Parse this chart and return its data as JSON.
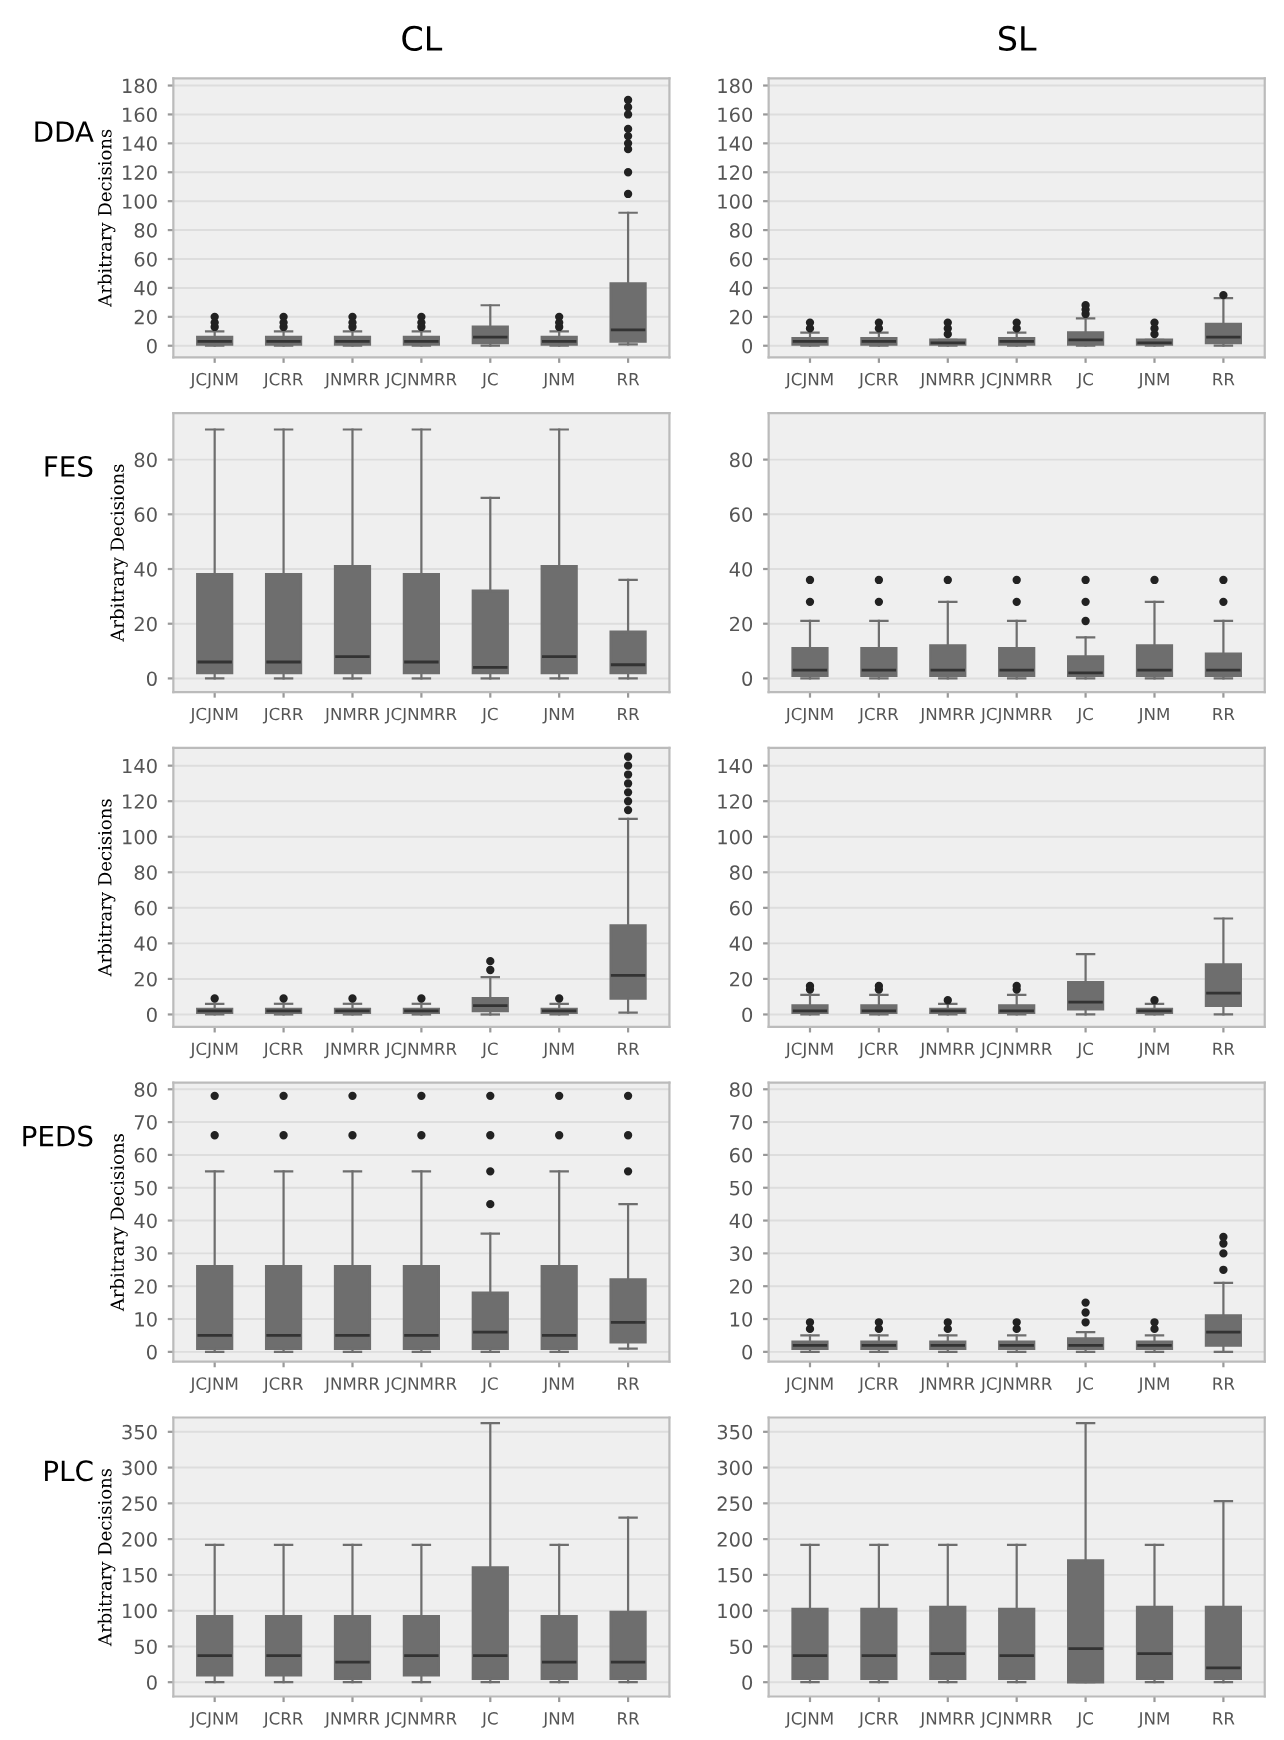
{
  "chart_data": [
    {
      "type": "box",
      "title": "CL",
      "ylabel": "Arbitrary Decisions",
      "annotations": [
        "DDA"
      ],
      "categories": [
        "JCJNM",
        "JCRR",
        "JNMRR",
        "JCJNMRR",
        "JC",
        "JNM",
        "RR"
      ],
      "color": "#6e6e6e",
      "ylim": [
        -8,
        185
      ],
      "yticks": [
        0,
        20,
        40,
        60,
        80,
        100,
        120,
        140,
        160,
        180
      ],
      "grid": "y",
      "boxes": [
        {
          "low": 0,
          "q1": 1,
          "median": 3,
          "q3": 6,
          "high": 10,
          "outliers": [
            13,
            16,
            20
          ]
        },
        {
          "low": 0,
          "q1": 1,
          "median": 3,
          "q3": 6,
          "high": 10,
          "outliers": [
            13,
            16,
            20
          ]
        },
        {
          "low": 0,
          "q1": 1,
          "median": 3,
          "q3": 6,
          "high": 10,
          "outliers": [
            13,
            16,
            20
          ]
        },
        {
          "low": 0,
          "q1": 1,
          "median": 3,
          "q3": 6,
          "high": 10,
          "outliers": [
            13,
            16,
            20
          ]
        },
        {
          "low": 0,
          "q1": 2,
          "median": 6,
          "q3": 13,
          "high": 28
        },
        {
          "low": 0,
          "q1": 1,
          "median": 3,
          "q3": 6,
          "high": 10,
          "outliers": [
            13,
            16,
            20
          ]
        },
        {
          "low": 1,
          "q1": 3,
          "median": 11,
          "q3": 43,
          "high": 92,
          "outliers": [
            105,
            120,
            136,
            140,
            145,
            150,
            160,
            165,
            170
          ]
        }
      ]
    },
    {
      "type": "box",
      "title": "SL",
      "categories": [
        "JCJNM",
        "JCRR",
        "JNMRR",
        "JCJNMRR",
        "JC",
        "JNM",
        "RR"
      ],
      "color": "#6e6e6e",
      "ylim": [
        -8,
        185
      ],
      "yticks": [
        0,
        20,
        40,
        60,
        80,
        100,
        120,
        140,
        160,
        180
      ],
      "grid": "y",
      "boxes": [
        {
          "low": 0,
          "q1": 1,
          "median": 3,
          "q3": 5,
          "high": 9,
          "outliers": [
            12,
            16
          ]
        },
        {
          "low": 0,
          "q1": 1,
          "median": 3,
          "q3": 5,
          "high": 9,
          "outliers": [
            12,
            16
          ]
        },
        {
          "low": 0,
          "q1": 1,
          "median": 2,
          "q3": 4,
          "high": 4,
          "outliers": [
            8,
            12,
            16
          ]
        },
        {
          "low": 0,
          "q1": 1,
          "median": 3,
          "q3": 5,
          "high": 9,
          "outliers": [
            12,
            16
          ]
        },
        {
          "low": 0,
          "q1": 1,
          "median": 4,
          "q3": 9,
          "high": 19,
          "outliers": [
            22,
            25,
            28
          ]
        },
        {
          "low": 0,
          "q1": 1,
          "median": 2,
          "q3": 4,
          "high": 4,
          "outliers": [
            8,
            12,
            16
          ]
        },
        {
          "low": 0,
          "q1": 2,
          "median": 6,
          "q3": 15,
          "high": 33,
          "outliers": [
            35
          ]
        }
      ]
    },
    {
      "type": "box",
      "ylabel": "Arbitrary Decisions",
      "annotations": [
        "FES"
      ],
      "categories": [
        "JCJNM",
        "JCRR",
        "JNMRR",
        "JCJNMRR",
        "JC",
        "JNM",
        "RR"
      ],
      "color": "#6e6e6e",
      "ylim": [
        -5,
        97
      ],
      "yticks": [
        0,
        20,
        40,
        60,
        80
      ],
      "grid": "y",
      "boxes": [
        {
          "low": 0,
          "q1": 2,
          "median": 6,
          "q3": 38,
          "high": 91
        },
        {
          "low": 0,
          "q1": 2,
          "median": 6,
          "q3": 38,
          "high": 91
        },
        {
          "low": 0,
          "q1": 2,
          "median": 8,
          "q3": 41,
          "high": 91
        },
        {
          "low": 0,
          "q1": 2,
          "median": 6,
          "q3": 38,
          "high": 91
        },
        {
          "low": 0,
          "q1": 2,
          "median": 4,
          "q3": 32,
          "high": 66
        },
        {
          "low": 0,
          "q1": 2,
          "median": 8,
          "q3": 41,
          "high": 91
        },
        {
          "low": 0,
          "q1": 2,
          "median": 5,
          "q3": 17,
          "high": 36
        }
      ]
    },
    {
      "type": "box",
      "categories": [
        "JCJNM",
        "JCRR",
        "JNMRR",
        "JCJNMRR",
        "JC",
        "JNM",
        "RR"
      ],
      "color": "#6e6e6e",
      "ylim": [
        -5,
        97
      ],
      "yticks": [
        0,
        20,
        40,
        60,
        80
      ],
      "grid": "y",
      "boxes": [
        {
          "low": 0,
          "q1": 1,
          "median": 3,
          "q3": 11,
          "high": 21,
          "outliers": [
            28,
            36
          ]
        },
        {
          "low": 0,
          "q1": 1,
          "median": 3,
          "q3": 11,
          "high": 21,
          "outliers": [
            28,
            36
          ]
        },
        {
          "low": 0,
          "q1": 1,
          "median": 3,
          "q3": 12,
          "high": 28,
          "outliers": [
            36
          ]
        },
        {
          "low": 0,
          "q1": 1,
          "median": 3,
          "q3": 11,
          "high": 21,
          "outliers": [
            28,
            36
          ]
        },
        {
          "low": 0,
          "q1": 1,
          "median": 2,
          "q3": 8,
          "high": 15,
          "outliers": [
            21,
            28,
            36
          ]
        },
        {
          "low": 0,
          "q1": 1,
          "median": 3,
          "q3": 12,
          "high": 28,
          "outliers": [
            36
          ]
        },
        {
          "low": 0,
          "q1": 1,
          "median": 3,
          "q3": 9,
          "high": 21,
          "outliers": [
            28,
            36
          ]
        }
      ]
    },
    {
      "type": "box",
      "ylabel": "Arbitrary Decisions",
      "categories": [
        "JCJNM",
        "JCRR",
        "JNMRR",
        "JCJNMRR",
        "JC",
        "JNM",
        "RR"
      ],
      "color": "#6e6e6e",
      "ylim": [
        -7,
        150
      ],
      "yticks": [
        0,
        20,
        40,
        60,
        80,
        100,
        120,
        140
      ],
      "grid": "y",
      "boxes": [
        {
          "low": 0,
          "q1": 1,
          "median": 2,
          "q3": 3,
          "high": 6,
          "outliers": [
            9
          ]
        },
        {
          "low": 0,
          "q1": 1,
          "median": 2,
          "q3": 3,
          "high": 6,
          "outliers": [
            9
          ]
        },
        {
          "low": 0,
          "q1": 1,
          "median": 2,
          "q3": 3,
          "high": 6,
          "outliers": [
            9
          ]
        },
        {
          "low": 0,
          "q1": 1,
          "median": 2,
          "q3": 3,
          "high": 6,
          "outliers": [
            9
          ]
        },
        {
          "low": 0,
          "q1": 2,
          "median": 5,
          "q3": 9,
          "high": 21,
          "outliers": [
            25,
            30
          ]
        },
        {
          "low": 0,
          "q1": 1,
          "median": 2,
          "q3": 3,
          "high": 6,
          "outliers": [
            9
          ]
        },
        {
          "low": 1,
          "q1": 9,
          "median": 22,
          "q3": 50,
          "high": 110,
          "outliers": [
            115,
            120,
            125,
            130,
            135,
            140,
            145
          ]
        }
      ]
    },
    {
      "type": "box",
      "categories": [
        "JCJNM",
        "JCRR",
        "JNMRR",
        "JCJNMRR",
        "JC",
        "JNM",
        "RR"
      ],
      "color": "#6e6e6e",
      "ylim": [
        -7,
        150
      ],
      "yticks": [
        0,
        20,
        40,
        60,
        80,
        100,
        120,
        140
      ],
      "grid": "y",
      "boxes": [
        {
          "low": 0,
          "q1": 1,
          "median": 2,
          "q3": 5,
          "high": 11,
          "outliers": [
            14,
            16
          ]
        },
        {
          "low": 0,
          "q1": 1,
          "median": 2,
          "q3": 5,
          "high": 11,
          "outliers": [
            14,
            16
          ]
        },
        {
          "low": 0,
          "q1": 1,
          "median": 2,
          "q3": 3,
          "high": 6,
          "outliers": [
            8
          ]
        },
        {
          "low": 0,
          "q1": 1,
          "median": 2,
          "q3": 5,
          "high": 11,
          "outliers": [
            14,
            16
          ]
        },
        {
          "low": 0,
          "q1": 3,
          "median": 7,
          "q3": 18,
          "high": 34
        },
        {
          "low": 0,
          "q1": 1,
          "median": 2,
          "q3": 3,
          "high": 6,
          "outliers": [
            8
          ]
        },
        {
          "low": 0,
          "q1": 5,
          "median": 12,
          "q3": 28,
          "high": 54
        }
      ]
    },
    {
      "type": "box",
      "ylabel": "Arbitrary Decisions",
      "annotations": [
        "PEDS"
      ],
      "categories": [
        "JCJNM",
        "JCRR",
        "JNMRR",
        "JCJNMRR",
        "JC",
        "JNM",
        "RR"
      ],
      "color": "#6e6e6e",
      "ylim": [
        -3,
        82
      ],
      "yticks": [
        0,
        10,
        20,
        30,
        40,
        50,
        60,
        70,
        80
      ],
      "grid": "y",
      "boxes": [
        {
          "low": 0,
          "q1": 1,
          "median": 5,
          "q3": 26,
          "high": 55,
          "outliers": [
            66,
            78
          ]
        },
        {
          "low": 0,
          "q1": 1,
          "median": 5,
          "q3": 26,
          "high": 55,
          "outliers": [
            66,
            78
          ]
        },
        {
          "low": 0,
          "q1": 1,
          "median": 5,
          "q3": 26,
          "high": 55,
          "outliers": [
            66,
            78
          ]
        },
        {
          "low": 0,
          "q1": 1,
          "median": 5,
          "q3": 26,
          "high": 55,
          "outliers": [
            66,
            78
          ]
        },
        {
          "low": 0,
          "q1": 1,
          "median": 6,
          "q3": 18,
          "high": 36,
          "outliers": [
            45,
            55,
            66,
            78
          ]
        },
        {
          "low": 0,
          "q1": 1,
          "median": 5,
          "q3": 26,
          "high": 55,
          "outliers": [
            66,
            78
          ]
        },
        {
          "low": 1,
          "q1": 3,
          "median": 9,
          "q3": 22,
          "high": 45,
          "outliers": [
            55,
            66,
            78
          ]
        }
      ]
    },
    {
      "type": "box",
      "categories": [
        "JCJNM",
        "JCRR",
        "JNMRR",
        "JCJNMRR",
        "JC",
        "JNM",
        "RR"
      ],
      "color": "#6e6e6e",
      "ylim": [
        -3,
        82
      ],
      "yticks": [
        0,
        10,
        20,
        30,
        40,
        50,
        60,
        70,
        80
      ],
      "grid": "y",
      "boxes": [
        {
          "low": 0,
          "q1": 1,
          "median": 2,
          "q3": 3,
          "high": 5,
          "outliers": [
            7,
            9
          ]
        },
        {
          "low": 0,
          "q1": 1,
          "median": 2,
          "q3": 3,
          "high": 5,
          "outliers": [
            7,
            9
          ]
        },
        {
          "low": 0,
          "q1": 1,
          "median": 2,
          "q3": 3,
          "high": 5,
          "outliers": [
            7,
            9
          ]
        },
        {
          "low": 0,
          "q1": 1,
          "median": 2,
          "q3": 3,
          "high": 5,
          "outliers": [
            7,
            9
          ]
        },
        {
          "low": 0,
          "q1": 1,
          "median": 2,
          "q3": 4,
          "high": 6,
          "outliers": [
            9,
            12,
            15
          ]
        },
        {
          "low": 0,
          "q1": 1,
          "median": 2,
          "q3": 3,
          "high": 5,
          "outliers": [
            7,
            9
          ]
        },
        {
          "low": 0,
          "q1": 2,
          "median": 6,
          "q3": 11,
          "high": 21,
          "outliers": [
            25,
            30,
            33,
            35
          ]
        }
      ]
    },
    {
      "type": "box",
      "ylabel": "Arbitrary Decisions",
      "annotations": [
        "PLC"
      ],
      "categories": [
        "JCJNM",
        "JCRR",
        "JNMRR",
        "JCJNMRR",
        "JC",
        "JNM",
        "RR"
      ],
      "color": "#6e6e6e",
      "ylim": [
        -20,
        370
      ],
      "yticks": [
        0,
        50,
        100,
        150,
        200,
        250,
        300,
        350
      ],
      "grid": "y",
      "boxes": [
        {
          "low": 0,
          "q1": 10,
          "median": 37,
          "q3": 92,
          "high": 192
        },
        {
          "low": 0,
          "q1": 10,
          "median": 37,
          "q3": 92,
          "high": 192
        },
        {
          "low": 0,
          "q1": 5,
          "median": 28,
          "q3": 92,
          "high": 192
        },
        {
          "low": 0,
          "q1": 10,
          "median": 37,
          "q3": 92,
          "high": 192
        },
        {
          "low": 0,
          "q1": 5,
          "median": 37,
          "q3": 160,
          "high": 362
        },
        {
          "low": 0,
          "q1": 5,
          "median": 28,
          "q3": 92,
          "high": 192
        },
        {
          "low": 0,
          "q1": 5,
          "median": 28,
          "q3": 98,
          "high": 230
        }
      ]
    },
    {
      "type": "box",
      "categories": [
        "JCJNM",
        "JCRR",
        "JNMRR",
        "JCJNMRR",
        "JC",
        "JNM",
        "RR"
      ],
      "color": "#6e6e6e",
      "ylim": [
        -20,
        370
      ],
      "yticks": [
        0,
        50,
        100,
        150,
        200,
        250,
        300,
        350
      ],
      "grid": "y",
      "boxes": [
        {
          "low": 0,
          "q1": 5,
          "median": 37,
          "q3": 102,
          "high": 192
        },
        {
          "low": 0,
          "q1": 5,
          "median": 37,
          "q3": 102,
          "high": 192
        },
        {
          "low": 0,
          "q1": 5,
          "median": 40,
          "q3": 105,
          "high": 192
        },
        {
          "low": 0,
          "q1": 5,
          "median": 37,
          "q3": 102,
          "high": 192
        },
        {
          "low": 0,
          "q1": 0,
          "median": 47,
          "q3": 170,
          "high": 362
        },
        {
          "low": 0,
          "q1": 5,
          "median": 40,
          "q3": 105,
          "high": 192
        },
        {
          "low": 0,
          "q1": 5,
          "median": 20,
          "q3": 105,
          "high": 253
        }
      ]
    }
  ]
}
